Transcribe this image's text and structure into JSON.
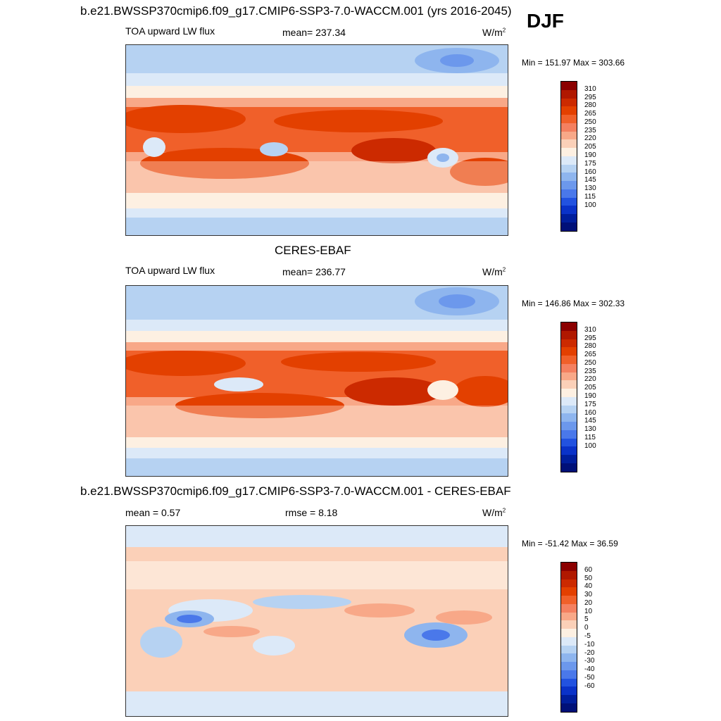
{
  "header": {
    "title": "b.e21.BWSSP370cmip6.f09_g17.CMIP6-SSP3-7.0-WACCM.001 (yrs 2016-2045)",
    "season": "DJF"
  },
  "panels": [
    {
      "variable": "TOA upward LW flux",
      "stat_text": "mean= 237.34",
      "unit_base": "W/m",
      "unit_sup": "2",
      "minmax": "Min = 151.97 Max = 303.66",
      "colorbar": {
        "labels": [
          "310",
          "295",
          "280",
          "265",
          "250",
          "235",
          "220",
          "205",
          "190",
          "175",
          "160",
          "145",
          "130",
          "115",
          "100"
        ],
        "colors": [
          "#8b0000",
          "#b01800",
          "#cc2a00",
          "#e34000",
          "#f0602a",
          "#f48060",
          "#f8a888",
          "#fbd0b8",
          "#fdf0e2",
          "#dce9f8",
          "#b6d2f2",
          "#8eb5ee",
          "#6c98ec",
          "#4a78ea",
          "#2252e0",
          "#0a32c8",
          "#001e9c",
          "#001078"
        ]
      }
    },
    {
      "title": "CERES-EBAF",
      "variable": "TOA upward LW flux",
      "stat_text": "mean= 236.77",
      "unit_base": "W/m",
      "unit_sup": "2",
      "minmax": "Min = 146.86 Max = 302.33",
      "colorbar": {
        "labels": [
          "310",
          "295",
          "280",
          "265",
          "250",
          "235",
          "220",
          "205",
          "190",
          "175",
          "160",
          "145",
          "130",
          "115",
          "100"
        ],
        "colors": [
          "#8b0000",
          "#b01800",
          "#cc2a00",
          "#e34000",
          "#f0602a",
          "#f48060",
          "#f8a888",
          "#fbd0b8",
          "#fdf0e2",
          "#dce9f8",
          "#b6d2f2",
          "#8eb5ee",
          "#6c98ec",
          "#4a78ea",
          "#2252e0",
          "#0a32c8",
          "#001e9c",
          "#001078"
        ]
      }
    },
    {
      "title": "b.e21.BWSSP370cmip6.f09_g17.CMIP6-SSP3-7.0-WACCM.001 - CERES-EBAF",
      "mean_text": "mean =   0.57",
      "rmse_text": "rmse =   8.18",
      "unit_base": "W/m",
      "unit_sup": "2",
      "minmax": "Min = -51.42 Max =  36.59",
      "colorbar": {
        "labels": [
          "60",
          "50",
          "40",
          "30",
          "20",
          "10",
          "5",
          "0",
          "-5",
          "-10",
          "-20",
          "-30",
          "-40",
          "-50",
          "-60"
        ],
        "colors": [
          "#8b0000",
          "#b01800",
          "#cc2a00",
          "#e34000",
          "#f0602a",
          "#f48060",
          "#f8a888",
          "#fbd0b8",
          "#fdf0e2",
          "#dce9f8",
          "#b6d2f2",
          "#8eb5ee",
          "#6c98ec",
          "#4a78ea",
          "#2252e0",
          "#0a32c8",
          "#001e9c",
          "#001078"
        ]
      }
    }
  ]
}
